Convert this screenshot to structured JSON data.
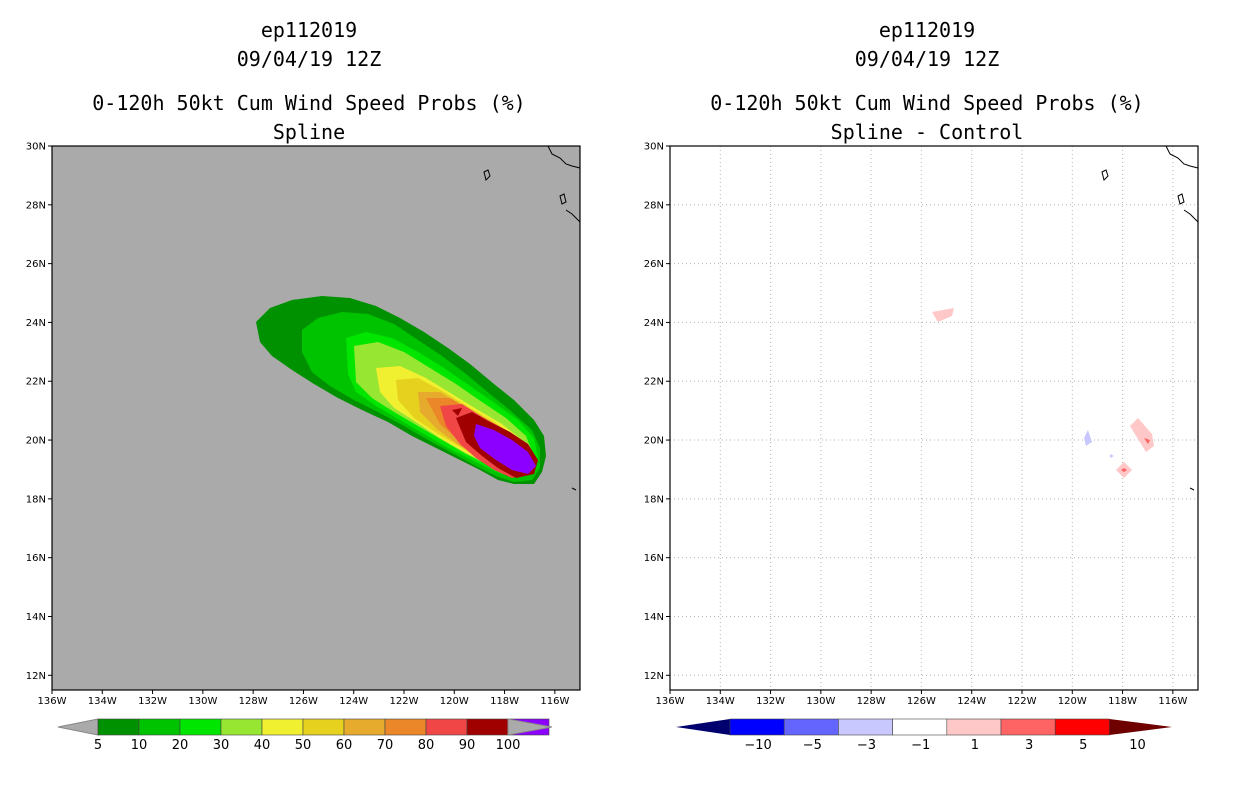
{
  "chart_data": [
    {
      "type": "heatmap",
      "storm_id": "ep112019",
      "datetime": "09/04/19 12Z",
      "title": "0-120h 50kt Cum Wind Speed Probs (%)",
      "subtitle": "Spline",
      "x_ticks": [
        "136W",
        "134W",
        "132W",
        "130W",
        "128W",
        "126W",
        "124W",
        "122W",
        "120W",
        "118W",
        "116W"
      ],
      "y_ticks": [
        "30N",
        "28N",
        "26N",
        "24N",
        "22N",
        "20N",
        "18N",
        "16N",
        "14N",
        "12N"
      ],
      "xlim": [
        -136,
        -115
      ],
      "ylim": [
        11.5,
        30
      ],
      "grid": false,
      "colorbar": {
        "labels": [
          "5",
          "10",
          "20",
          "30",
          "40",
          "50",
          "60",
          "70",
          "80",
          "90",
          "100"
        ],
        "colors": [
          "#009100",
          "#00c300",
          "#00e600",
          "#96e632",
          "#f0f030",
          "#e6d21e",
          "#e6aa2d",
          "#eb8728",
          "#f04646",
          "#a00000",
          "#8c00ff"
        ]
      },
      "contours": [
        {
          "level": 5,
          "color": "#009100"
        },
        {
          "level": 10,
          "color": "#00c300"
        },
        {
          "level": 20,
          "color": "#00e600"
        },
        {
          "level": 30,
          "color": "#96e632"
        },
        {
          "level": 40,
          "color": "#f0f030"
        },
        {
          "level": 50,
          "color": "#e6d21e"
        },
        {
          "level": 60,
          "color": "#e6aa2d"
        },
        {
          "level": 70,
          "color": "#eb8728"
        },
        {
          "level": 80,
          "color": "#f04646"
        },
        {
          "level": 90,
          "color": "#a00000"
        },
        {
          "level": 100,
          "color": "#8c00ff"
        }
      ],
      "colors": {
        "background": "#aaaaaa",
        "land_outline": "#000000"
      }
    },
    {
      "type": "heatmap",
      "storm_id": "ep112019",
      "datetime": "09/04/19 12Z",
      "title": "0-120h 50kt Cum Wind Speed Probs (%)",
      "subtitle": "Spline - Control",
      "x_ticks": [
        "136W",
        "134W",
        "132W",
        "130W",
        "128W",
        "126W",
        "124W",
        "122W",
        "120W",
        "118W",
        "116W"
      ],
      "y_ticks": [
        "30N",
        "28N",
        "26N",
        "24N",
        "22N",
        "20N",
        "18N",
        "16N",
        "14N",
        "12N"
      ],
      "xlim": [
        -136,
        -115
      ],
      "ylim": [
        11.5,
        30
      ],
      "grid": true,
      "colorbar": {
        "labels": [
          "-10",
          "-5",
          "-3",
          "-1",
          "1",
          "3",
          "5",
          "10"
        ],
        "colors": [
          "#00006e",
          "#0000ff",
          "#6464ff",
          "#c8c8ff",
          "#ffffff",
          "#ffc8c8",
          "#ff6464",
          "#ff0000",
          "#6e0000"
        ]
      },
      "anomalies": [
        {
          "name": "near 125W 24N",
          "lon": -124.8,
          "lat": 24.3,
          "color": "#ffc8c8"
        },
        {
          "name": "near 119W 20N",
          "lon": -119.0,
          "lat": 20.1,
          "color": "#c8c8ff"
        },
        {
          "name": "near 118W 19.5N",
          "lon": -118.1,
          "lat": 19.5,
          "color": "#c8c8ff"
        },
        {
          "name": "near 117.5W 19N",
          "lon": -117.4,
          "lat": 19.0,
          "color": "#ffc8c8"
        },
        {
          "name": "near 117W 20N",
          "lon": -116.7,
          "lat": 20.2,
          "color": "#ffc8c8"
        }
      ],
      "colors": {
        "background": "#ffffff",
        "land_outline": "#000000"
      }
    }
  ]
}
